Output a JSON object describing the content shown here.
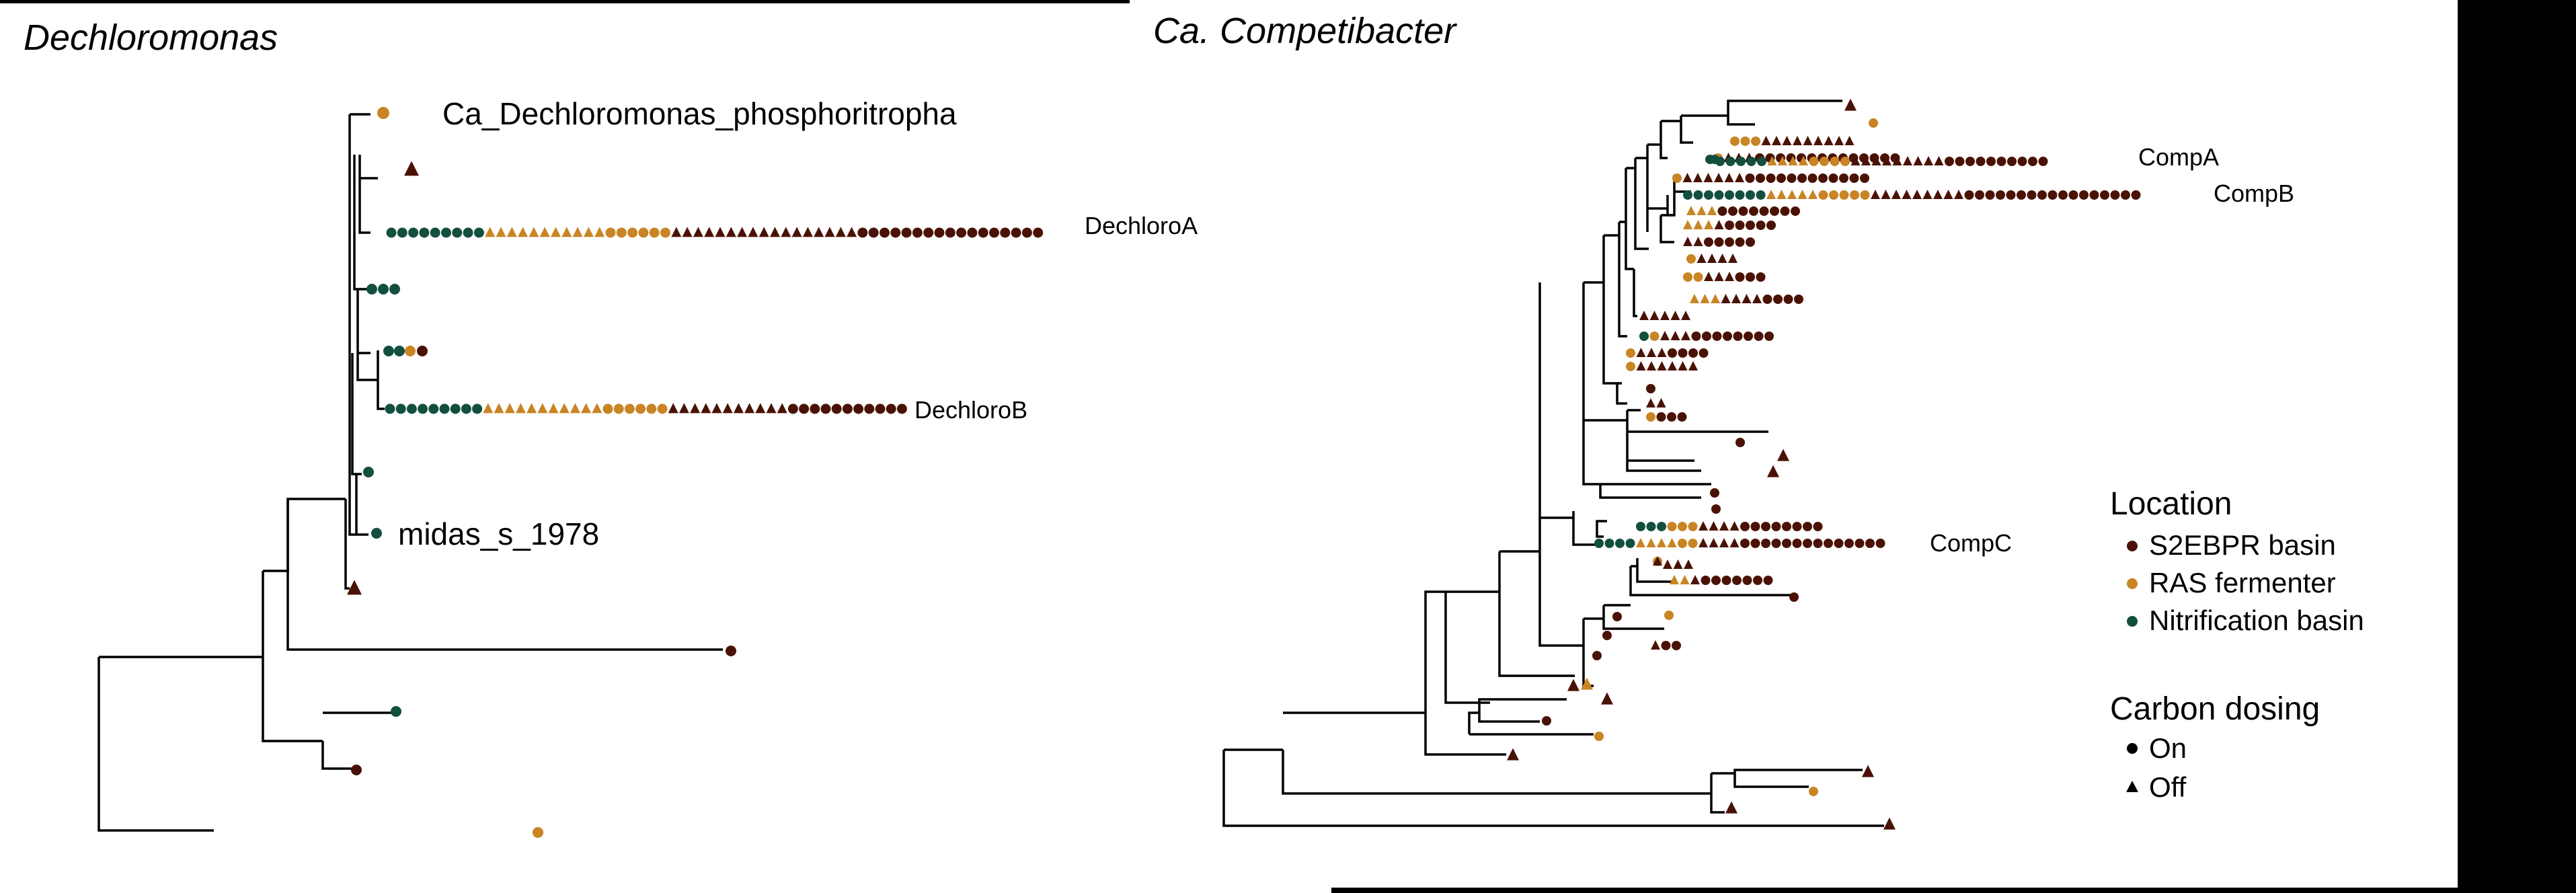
{
  "colors": {
    "s2ebpr": "#4a1205",
    "ras": "#c98424",
    "nitrification": "#124f3f",
    "on_off": "#000000"
  },
  "left_panel": {
    "title": "Dechloromonas",
    "labels": {
      "phosphoritropha": "Ca_Dechloromonas_phosphoritropha",
      "dechloroA": "DechloroA",
      "dechloroB": "DechloroB",
      "midas": "midas_s_1978"
    }
  },
  "right_panel": {
    "title": "Ca. Competibacter",
    "labels": {
      "compA": "CompA",
      "compB": "CompB",
      "compC": "CompC"
    }
  },
  "legend": {
    "location_title": "Location",
    "location_items": [
      "S2EBPR basin",
      "RAS fermenter",
      "Nitrification basin"
    ],
    "carbon_title": "Carbon dosing",
    "carbon_items": [
      "On",
      "Off"
    ]
  }
}
